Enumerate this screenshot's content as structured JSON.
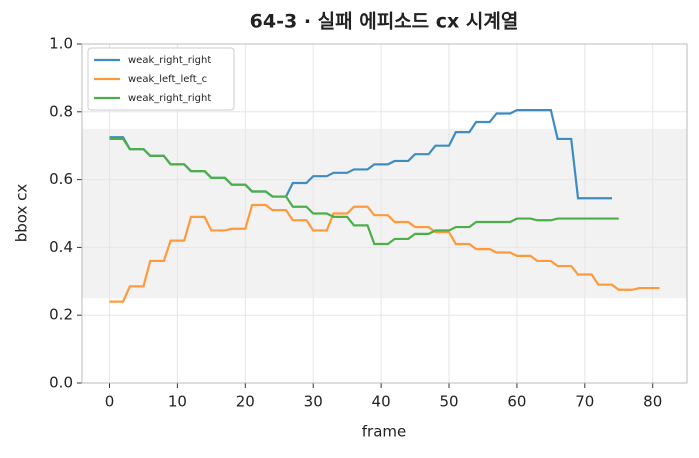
{
  "chart_data": {
    "type": "line",
    "title": "64-3 · 실패 에피소드 cx 시계열",
    "xlabel": "frame",
    "ylabel": "bbox cx",
    "x": [
      0,
      1,
      2,
      3,
      4,
      5,
      6,
      7,
      8,
      9,
      10,
      11,
      12,
      13,
      14,
      15,
      16,
      17,
      18,
      19,
      20,
      21,
      22,
      23,
      24,
      25,
      26,
      27,
      28,
      29,
      30,
      31,
      32,
      33,
      34,
      35,
      36,
      37,
      38,
      39,
      40,
      41,
      42,
      43,
      44,
      45,
      46,
      47,
      48,
      49,
      50,
      51,
      52,
      53,
      54,
      55,
      56,
      57,
      58,
      59,
      60,
      61,
      62,
      63,
      64,
      65,
      66,
      67,
      68,
      69,
      70,
      71,
      72,
      73,
      74,
      75,
      76,
      77,
      78,
      79,
      80,
      81
    ],
    "series": [
      {
        "name": "weak_right_right",
        "color": "#3f8cc0",
        "values": [
          0.725,
          0.725,
          0.725,
          0.69,
          0.69,
          0.69,
          0.67,
          0.67,
          0.67,
          0.645,
          0.645,
          0.645,
          0.625,
          0.625,
          0.625,
          0.605,
          0.605,
          0.605,
          0.585,
          0.585,
          0.585,
          0.565,
          0.565,
          0.565,
          0.55,
          0.55,
          0.55,
          0.59,
          0.59,
          0.59,
          0.61,
          0.61,
          0.61,
          0.62,
          0.62,
          0.62,
          0.63,
          0.63,
          0.63,
          0.645,
          0.645,
          0.645,
          0.655,
          0.655,
          0.655,
          0.675,
          0.675,
          0.675,
          0.7,
          0.7,
          0.7,
          0.74,
          0.74,
          0.74,
          0.77,
          0.77,
          0.77,
          0.795,
          0.795,
          0.795,
          0.805,
          0.805,
          0.805,
          0.805,
          0.805,
          0.805,
          0.72,
          0.72,
          0.72,
          0.545,
          0.545,
          0.545,
          0.545,
          0.545,
          0.545,
          null,
          null,
          null,
          null,
          null,
          null,
          null
        ]
      },
      {
        "name": "weak_left_left_c",
        "color": "#ff9a3c",
        "values": [
          0.24,
          0.24,
          0.24,
          0.285,
          0.285,
          0.285,
          0.36,
          0.36,
          0.36,
          0.42,
          0.42,
          0.42,
          0.49,
          0.49,
          0.49,
          0.45,
          0.45,
          0.45,
          0.455,
          0.455,
          0.455,
          0.525,
          0.525,
          0.525,
          0.51,
          0.51,
          0.51,
          0.48,
          0.48,
          0.48,
          0.45,
          0.45,
          0.45,
          0.5,
          0.5,
          0.5,
          0.52,
          0.52,
          0.52,
          0.495,
          0.495,
          0.495,
          0.475,
          0.475,
          0.475,
          0.46,
          0.46,
          0.46,
          0.445,
          0.445,
          0.445,
          0.41,
          0.41,
          0.41,
          0.395,
          0.395,
          0.395,
          0.385,
          0.385,
          0.385,
          0.375,
          0.375,
          0.375,
          0.36,
          0.36,
          0.36,
          0.345,
          0.345,
          0.345,
          0.32,
          0.32,
          0.32,
          0.29,
          0.29,
          0.29,
          0.275,
          0.275,
          0.275,
          0.28,
          0.28,
          0.28,
          0.28
        ]
      },
      {
        "name": "weak_right_right",
        "color": "#4caf4a",
        "values": [
          0.72,
          0.72,
          0.72,
          0.69,
          0.69,
          0.69,
          0.67,
          0.67,
          0.67,
          0.645,
          0.645,
          0.645,
          0.625,
          0.625,
          0.625,
          0.605,
          0.605,
          0.605,
          0.585,
          0.585,
          0.585,
          0.565,
          0.565,
          0.565,
          0.55,
          0.55,
          0.55,
          0.52,
          0.52,
          0.52,
          0.5,
          0.5,
          0.5,
          0.49,
          0.49,
          0.49,
          0.465,
          0.465,
          0.465,
          0.41,
          0.41,
          0.41,
          0.425,
          0.425,
          0.425,
          0.44,
          0.44,
          0.44,
          0.45,
          0.45,
          0.45,
          0.46,
          0.46,
          0.46,
          0.475,
          0.475,
          0.475,
          0.475,
          0.475,
          0.475,
          0.485,
          0.485,
          0.485,
          0.48,
          0.48,
          0.48,
          0.485,
          0.485,
          0.485,
          0.485,
          0.485,
          0.485,
          0.485,
          0.485,
          0.485,
          0.485,
          null,
          null,
          null,
          null,
          null,
          null
        ]
      }
    ],
    "hspan": [
      0.25,
      0.75
    ],
    "xlim": [
      -4.05,
      85.05
    ],
    "xticks": [
      0,
      10,
      20,
      30,
      40,
      50,
      60,
      70,
      80
    ],
    "ylim": [
      0,
      1
    ],
    "yticks": [
      {
        "value": 0,
        "label": "0.0"
      },
      0.2,
      0.4,
      0.6,
      0.8,
      {
        "value": 1,
        "label": "1.0"
      }
    ],
    "grid": true,
    "legend": "upper left"
  }
}
